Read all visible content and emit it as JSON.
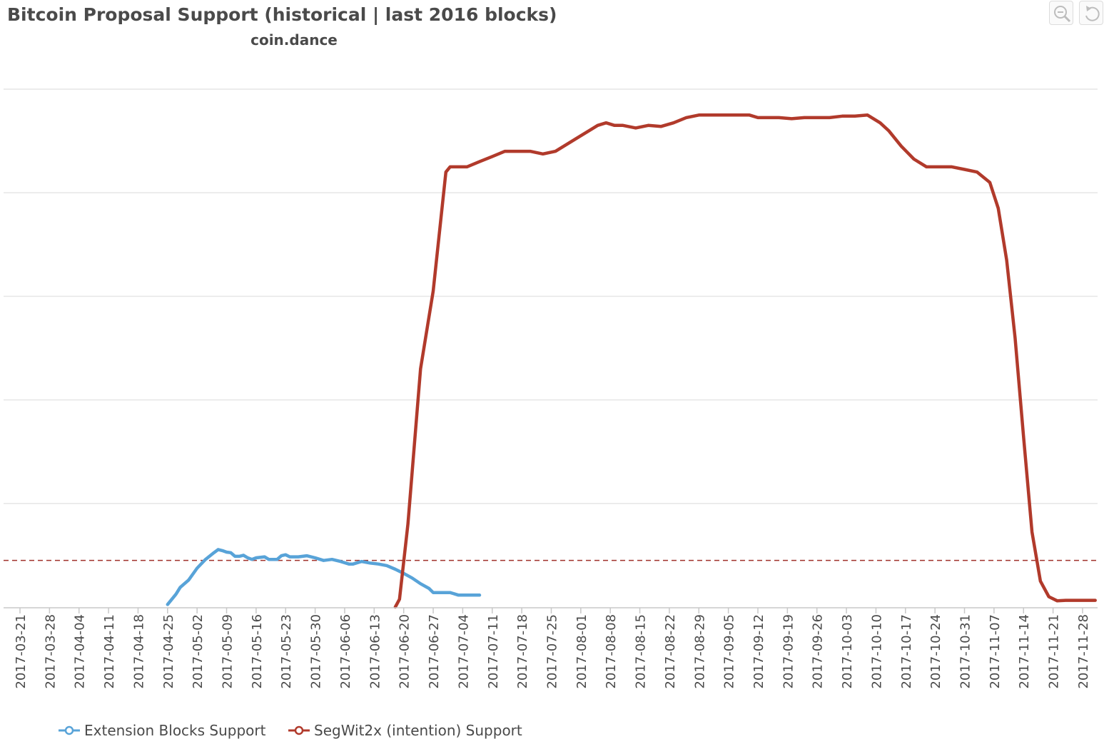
{
  "title": "Bitcoin Proposal Support (historical | last 2016 blocks)",
  "subtitle": "coin.dance",
  "toolbar": {
    "zoom_icon": "zoom-icon",
    "reset_icon": "reset-icon"
  },
  "chart_data": {
    "type": "line",
    "title": "Bitcoin Proposal Support (historical | last 2016 blocks)",
    "subtitle": "coin.dance",
    "xlabel": "",
    "ylabel": "",
    "x_tick_labels": [
      "2017-03-21",
      "2017-03-28",
      "2017-04-04",
      "2017-04-11",
      "2017-04-18",
      "2017-04-25",
      "2017-05-02",
      "2017-05-09",
      "2017-05-16",
      "2017-05-23",
      "2017-05-30",
      "2017-06-06",
      "2017-06-13",
      "2017-06-20",
      "2017-06-27",
      "2017-07-04",
      "2017-07-11",
      "2017-07-18",
      "2017-07-25",
      "2017-08-01",
      "2017-08-08",
      "2017-08-15",
      "2017-08-22",
      "2017-08-29",
      "2017-09-05",
      "2017-09-12",
      "2017-09-19",
      "2017-09-26",
      "2017-10-03",
      "2017-10-10",
      "2017-10-17",
      "2017-10-24",
      "2017-10-31",
      "2017-11-07",
      "2017-11-14",
      "2017-11-21",
      "2017-11-28"
    ],
    "ylim": [
      0,
      100
    ],
    "grid": true,
    "y_tick_labels_visible": false,
    "legend_position": "bottom-left",
    "threshold": {
      "value": 9,
      "color": "#a0302a",
      "style": "dashed"
    },
    "series": [
      {
        "name": "Extension Blocks Support",
        "color": "#58a3d8",
        "x": [
          "2017-04-25",
          "2017-04-27",
          "2017-04-28",
          "2017-04-30",
          "2017-05-02",
          "2017-05-04",
          "2017-05-06",
          "2017-05-07",
          "2017-05-08",
          "2017-05-09",
          "2017-05-10",
          "2017-05-11",
          "2017-05-12",
          "2017-05-13",
          "2017-05-14",
          "2017-05-15",
          "2017-05-16",
          "2017-05-18",
          "2017-05-19",
          "2017-05-21",
          "2017-05-22",
          "2017-05-23",
          "2017-05-24",
          "2017-05-26",
          "2017-05-28",
          "2017-05-30",
          "2017-06-01",
          "2017-06-03",
          "2017-06-05",
          "2017-06-07",
          "2017-06-08",
          "2017-06-10",
          "2017-06-12",
          "2017-06-14",
          "2017-06-16",
          "2017-06-18",
          "2017-06-20",
          "2017-06-22",
          "2017-06-24",
          "2017-06-26",
          "2017-06-27",
          "2017-06-29",
          "2017-07-01",
          "2017-07-03",
          "2017-07-05",
          "2017-07-07",
          "2017-07-08"
        ],
        "values": [
          0.5,
          2.5,
          3.8,
          5.2,
          7.5,
          9.2,
          10.5,
          11.1,
          10.9,
          10.6,
          10.5,
          9.8,
          9.8,
          10.0,
          9.5,
          9.2,
          9.5,
          9.7,
          9.2,
          9.2,
          9.9,
          10.1,
          9.7,
          9.7,
          9.9,
          9.5,
          9.0,
          9.2,
          8.8,
          8.3,
          8.3,
          8.8,
          8.5,
          8.3,
          8.0,
          7.3,
          6.5,
          5.6,
          4.5,
          3.6,
          2.8,
          2.8,
          2.8,
          2.3,
          2.3,
          2.3,
          2.3
        ]
      },
      {
        "name": "SegWit2x (intention) Support",
        "color": "#b13a2b",
        "x": [
          "2017-06-18",
          "2017-06-19",
          "2017-06-21",
          "2017-06-24",
          "2017-06-27",
          "2017-06-30",
          "2017-07-01",
          "2017-07-03",
          "2017-07-05",
          "2017-07-08",
          "2017-07-11",
          "2017-07-14",
          "2017-07-17",
          "2017-07-20",
          "2017-07-23",
          "2017-07-26",
          "2017-07-29",
          "2017-08-01",
          "2017-08-03",
          "2017-08-05",
          "2017-08-07",
          "2017-08-09",
          "2017-08-11",
          "2017-08-14",
          "2017-08-17",
          "2017-08-20",
          "2017-08-23",
          "2017-08-26",
          "2017-08-29",
          "2017-09-01",
          "2017-09-04",
          "2017-09-07",
          "2017-09-10",
          "2017-09-12",
          "2017-09-14",
          "2017-09-17",
          "2017-09-20",
          "2017-09-23",
          "2017-09-26",
          "2017-09-29",
          "2017-10-02",
          "2017-10-05",
          "2017-10-08",
          "2017-10-11",
          "2017-10-13",
          "2017-10-16",
          "2017-10-19",
          "2017-10-22",
          "2017-10-25",
          "2017-10-28",
          "2017-10-31",
          "2017-11-03",
          "2017-11-06",
          "2017-11-08",
          "2017-11-10",
          "2017-11-12",
          "2017-11-14",
          "2017-11-16",
          "2017-11-18",
          "2017-11-20",
          "2017-11-22",
          "2017-11-24",
          "2017-11-26",
          "2017-11-28",
          "2017-11-30",
          "2017-12-01"
        ],
        "values": [
          0.0,
          1.5,
          16,
          46,
          61,
          84,
          85,
          85,
          85,
          86,
          87,
          88,
          88,
          88,
          87.5,
          88,
          89.5,
          91,
          92,
          93,
          93.5,
          93,
          93,
          92.5,
          93,
          92.8,
          93.5,
          94.5,
          95,
          95,
          95,
          95,
          95,
          94.5,
          94.5,
          94.5,
          94.3,
          94.5,
          94.5,
          94.5,
          94.8,
          94.8,
          95,
          93.5,
          92,
          89,
          86.5,
          85,
          85,
          85,
          84.5,
          84,
          82,
          77,
          67,
          52,
          33,
          14.5,
          5,
          2,
          1.2,
          1.3,
          1.3,
          1.3,
          1.3,
          1.3
        ]
      }
    ]
  }
}
